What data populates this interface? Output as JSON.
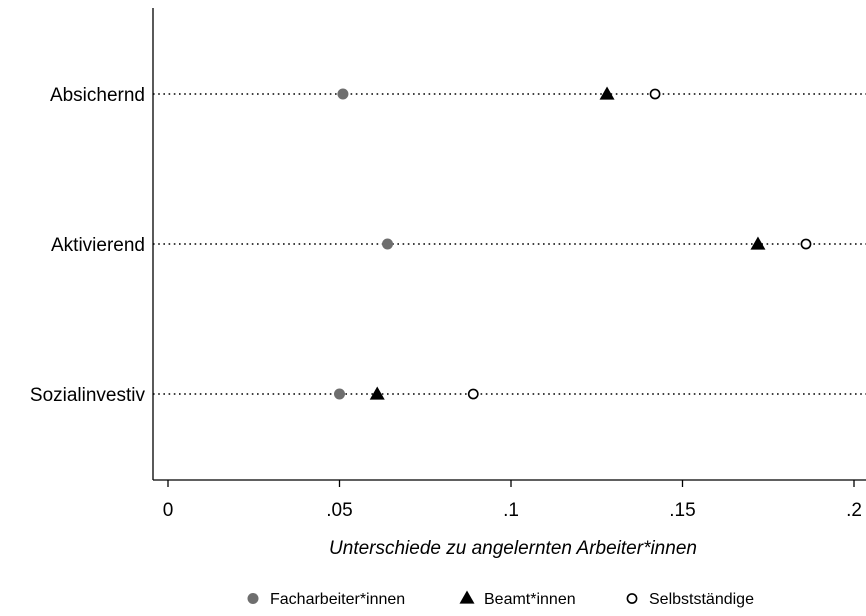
{
  "chart_data": {
    "type": "scatter",
    "title": "",
    "xlabel": "Unterschiede zu angelernten Arbeiter*innen",
    "ylabel": "",
    "xlim": [
      -0.004,
      0.202
    ],
    "x_ticks": [
      0,
      0.05,
      0.1,
      0.15,
      0.2
    ],
    "x_tick_labels": [
      "0",
      ".05",
      ".1",
      ".15",
      ".2"
    ],
    "categories": [
      "Absichernd",
      "Aktivierend",
      "Sozialinvestiv"
    ],
    "series": [
      {
        "name": "Facharbeiter*innen",
        "marker": "filled-circle",
        "color": "#6e6e6e",
        "values": [
          0.051,
          0.064,
          0.05
        ]
      },
      {
        "name": "Beamt*innen",
        "marker": "filled-triangle",
        "color": "#000000",
        "values": [
          0.128,
          0.172,
          0.061
        ]
      },
      {
        "name": "Selbstständige",
        "marker": "hollow-circle",
        "color": "#000000",
        "values": [
          0.142,
          0.186,
          0.089
        ]
      }
    ],
    "grid": false,
    "dotted_category_lines": true,
    "legend_position": "bottom"
  }
}
